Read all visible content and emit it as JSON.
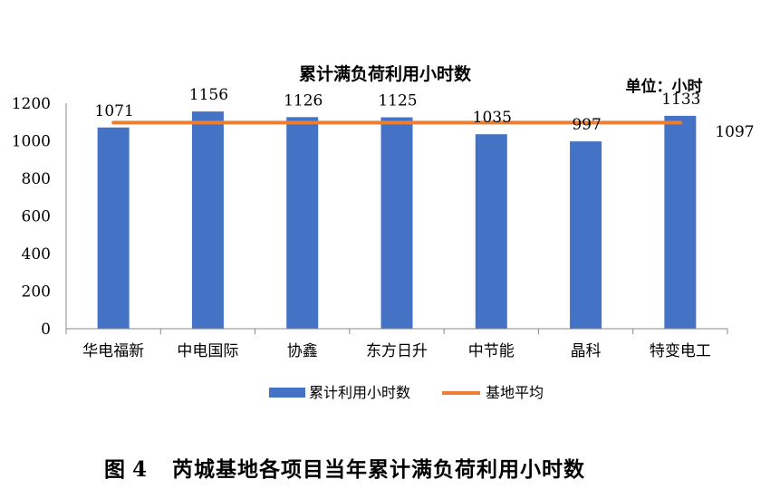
{
  "chart_data": {
    "type": "bar",
    "title": "累计满负荷利用小时数",
    "unit_label": "单位：小时",
    "categories": [
      "华电福新",
      "中电国际",
      "协鑫",
      "东方日升",
      "中节能",
      "晶科",
      "特变电工"
    ],
    "series": [
      {
        "name": "累计利用小时数",
        "type": "bar",
        "color": "#4472C4",
        "values": [
          1071,
          1156,
          1126,
          1125,
          1035,
          997,
          1133
        ]
      },
      {
        "name": "基地平均",
        "type": "line",
        "color": "#ED7D31",
        "value": 1097
      }
    ],
    "ylim": [
      0,
      1200
    ],
    "yticks": [
      0,
      200,
      400,
      600,
      800,
      1000,
      1200
    ],
    "legend": "bottom",
    "grid": false
  },
  "caption": {
    "label": "图 4",
    "text": "芮城基地各项目当年累计满负荷利用小时数"
  }
}
